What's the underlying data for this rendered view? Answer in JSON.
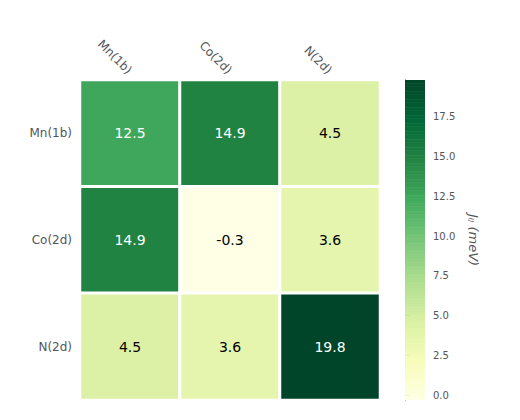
{
  "chart_data": {
    "type": "heatmap",
    "categories": [
      "Mn(1b)",
      "Co(2d)",
      "N(2d)"
    ],
    "matrix": [
      [
        12.5,
        14.9,
        4.5
      ],
      [
        14.9,
        -0.3,
        3.6
      ],
      [
        4.5,
        3.6,
        19.8
      ]
    ],
    "data_labels": true,
    "colorbar_label": "Jᵢⱼ (meV)",
    "colorbar_range": [
      -0.3,
      19.8
    ],
    "colorbar_ticks": [
      {
        "value": 0,
        "label": "0.0"
      },
      2.5,
      {
        "value": 5,
        "label": "5.0"
      },
      7.5,
      {
        "value": 10,
        "label": "10.0"
      },
      12.5,
      {
        "value": 15,
        "label": "15.0"
      },
      17.5
    ],
    "colors": [
      "#ffffe5",
      "#f7fcb9",
      "#d9f0a3",
      "#addd8e",
      "#78c679",
      "#41ab5d",
      "#238443",
      "#006837",
      "#004529"
    ]
  }
}
